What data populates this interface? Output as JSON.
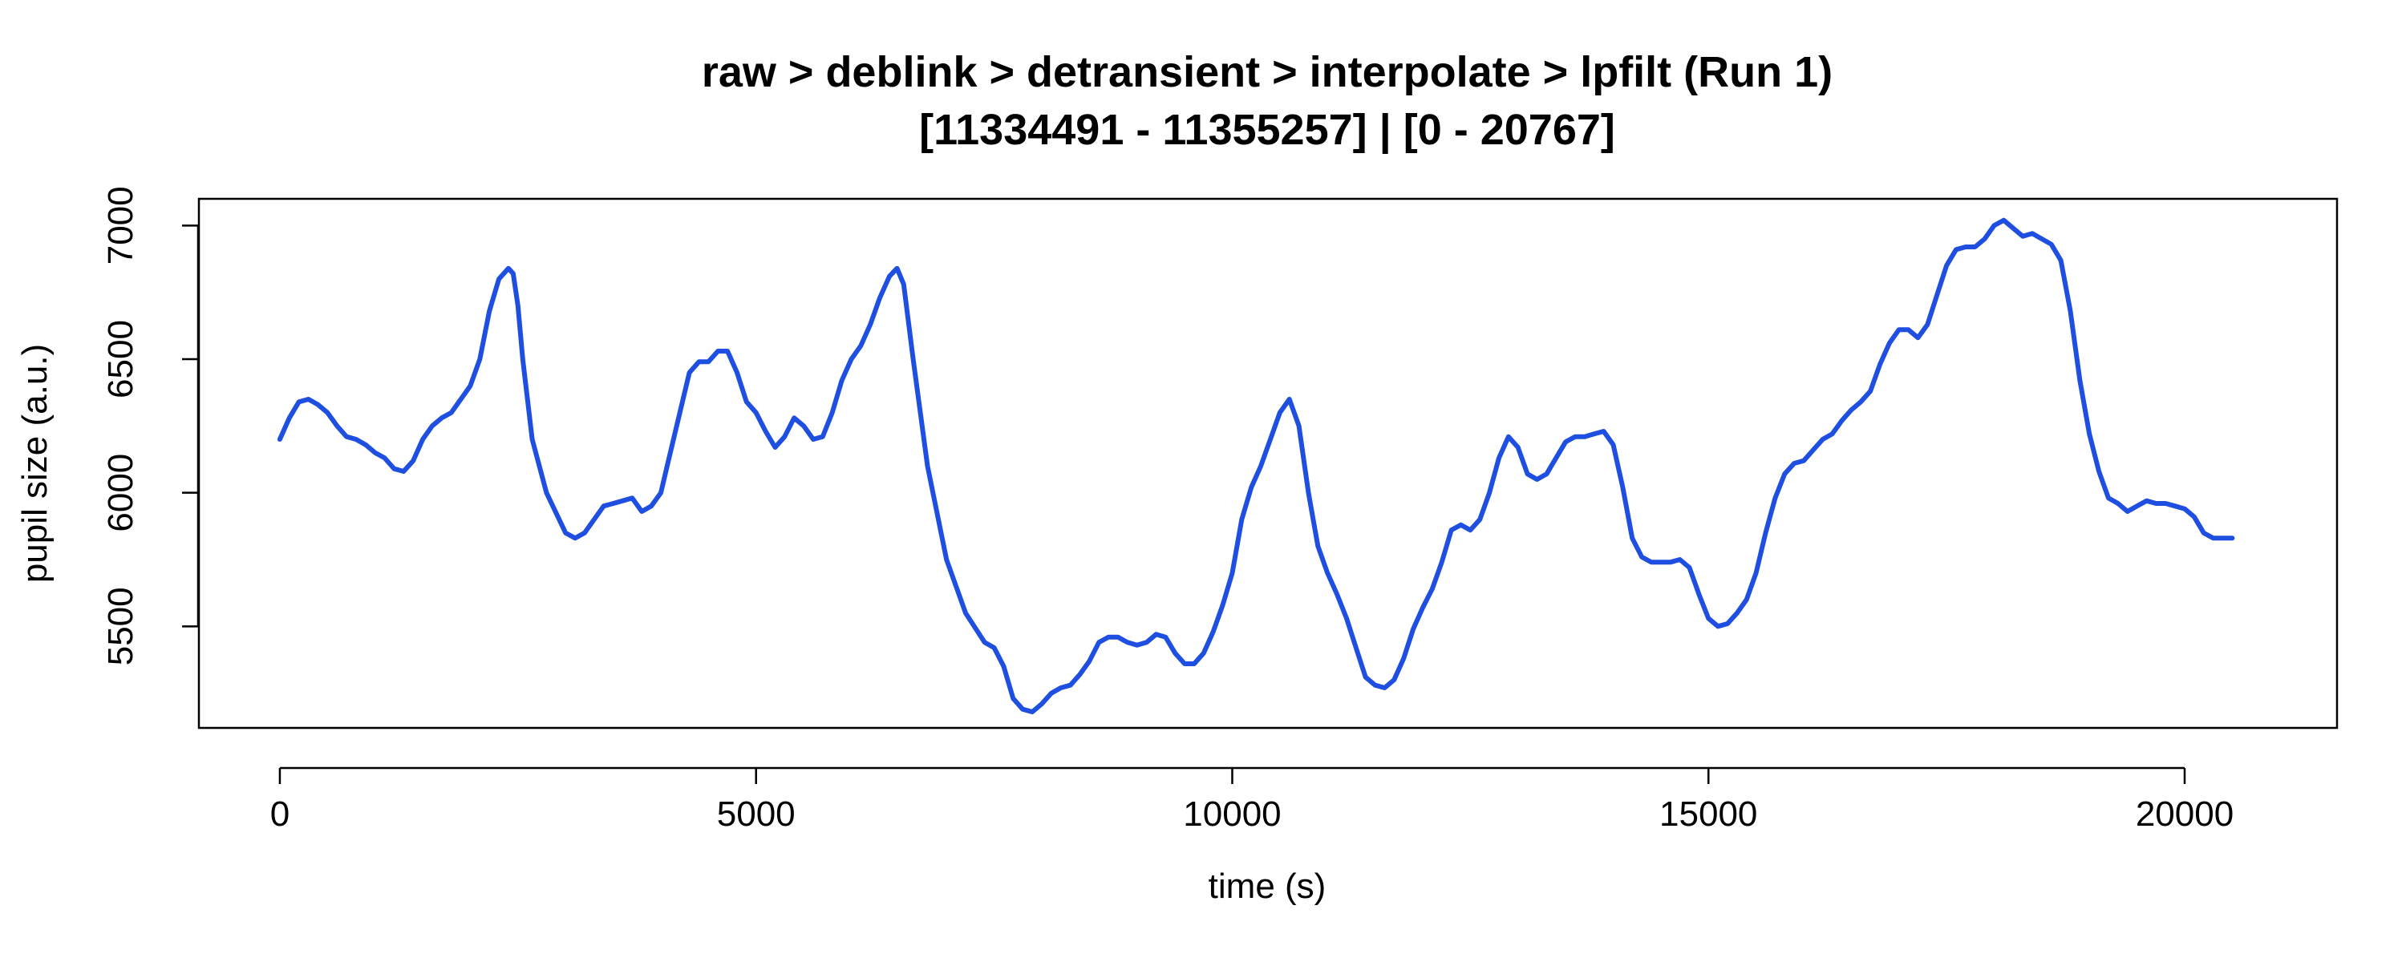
{
  "chart_data": {
    "type": "line",
    "title": "raw > deblink > detransient > interpolate > lpfilt (Run 1)",
    "subtitle": "[11334491 - 11355257] | [0 - 20767]",
    "xlabel": "time (s)",
    "ylabel": "pupil size (a.u.)",
    "xlim": [
      -850,
      21600
    ],
    "ylim": [
      5120,
      7100
    ],
    "x_ticks": [
      0,
      5000,
      10000,
      15000,
      20000
    ],
    "x_tick_labels": [
      "0",
      "5000",
      "10000",
      "15000",
      "20000"
    ],
    "y_ticks": [
      5500,
      6000,
      6500,
      7000
    ],
    "y_tick_labels": [
      "5500",
      "6000",
      "6500",
      "7000"
    ],
    "grid": false,
    "line_color": "#1f4fe0",
    "series": [
      {
        "values": [
          [
            0,
            6200
          ],
          [
            100,
            6280
          ],
          [
            200,
            6340
          ],
          [
            300,
            6350
          ],
          [
            400,
            6330
          ],
          [
            500,
            6300
          ],
          [
            600,
            6250
          ],
          [
            700,
            6210
          ],
          [
            800,
            6200
          ],
          [
            900,
            6180
          ],
          [
            1000,
            6150
          ],
          [
            1100,
            6130
          ],
          [
            1200,
            6090
          ],
          [
            1300,
            6080
          ],
          [
            1400,
            6120
          ],
          [
            1500,
            6200
          ],
          [
            1600,
            6250
          ],
          [
            1700,
            6280
          ],
          [
            1800,
            6300
          ],
          [
            1900,
            6350
          ],
          [
            2000,
            6400
          ],
          [
            2100,
            6500
          ],
          [
            2200,
            6680
          ],
          [
            2300,
            6800
          ],
          [
            2400,
            6840
          ],
          [
            2450,
            6820
          ],
          [
            2500,
            6700
          ],
          [
            2550,
            6500
          ],
          [
            2650,
            6200
          ],
          [
            2800,
            6000
          ],
          [
            3000,
            5850
          ],
          [
            3100,
            5830
          ],
          [
            3200,
            5850
          ],
          [
            3300,
            5900
          ],
          [
            3400,
            5950
          ],
          [
            3600,
            5970
          ],
          [
            3700,
            5980
          ],
          [
            3800,
            5930
          ],
          [
            3900,
            5950
          ],
          [
            4000,
            6000
          ],
          [
            4100,
            6150
          ],
          [
            4200,
            6300
          ],
          [
            4300,
            6450
          ],
          [
            4400,
            6490
          ],
          [
            4500,
            6490
          ],
          [
            4600,
            6530
          ],
          [
            4700,
            6530
          ],
          [
            4800,
            6450
          ],
          [
            4900,
            6340
          ],
          [
            5000,
            6300
          ],
          [
            5100,
            6230
          ],
          [
            5200,
            6170
          ],
          [
            5300,
            6210
          ],
          [
            5400,
            6280
          ],
          [
            5500,
            6250
          ],
          [
            5600,
            6200
          ],
          [
            5700,
            6210
          ],
          [
            5800,
            6300
          ],
          [
            5900,
            6420
          ],
          [
            6000,
            6500
          ],
          [
            6100,
            6550
          ],
          [
            6200,
            6630
          ],
          [
            6300,
            6730
          ],
          [
            6400,
            6810
          ],
          [
            6480,
            6840
          ],
          [
            6550,
            6780
          ],
          [
            6650,
            6500
          ],
          [
            6800,
            6100
          ],
          [
            7000,
            5750
          ],
          [
            7200,
            5550
          ],
          [
            7400,
            5440
          ],
          [
            7500,
            5420
          ],
          [
            7600,
            5350
          ],
          [
            7700,
            5230
          ],
          [
            7800,
            5190
          ],
          [
            7900,
            5180
          ],
          [
            8000,
            5210
          ],
          [
            8100,
            5250
          ],
          [
            8200,
            5270
          ],
          [
            8300,
            5280
          ],
          [
            8400,
            5320
          ],
          [
            8500,
            5370
          ],
          [
            8600,
            5440
          ],
          [
            8700,
            5460
          ],
          [
            8800,
            5460
          ],
          [
            8900,
            5440
          ],
          [
            9000,
            5430
          ],
          [
            9100,
            5440
          ],
          [
            9200,
            5470
          ],
          [
            9300,
            5460
          ],
          [
            9400,
            5400
          ],
          [
            9500,
            5360
          ],
          [
            9600,
            5360
          ],
          [
            9700,
            5400
          ],
          [
            9800,
            5480
          ],
          [
            9900,
            5580
          ],
          [
            10000,
            5700
          ],
          [
            10100,
            5900
          ],
          [
            10200,
            6020
          ],
          [
            10300,
            6100
          ],
          [
            10400,
            6200
          ],
          [
            10500,
            6300
          ],
          [
            10600,
            6350
          ],
          [
            10700,
            6250
          ],
          [
            10800,
            6000
          ],
          [
            10900,
            5800
          ],
          [
            11000,
            5700
          ],
          [
            11100,
            5620
          ],
          [
            11200,
            5530
          ],
          [
            11300,
            5420
          ],
          [
            11400,
            5310
          ],
          [
            11500,
            5280
          ],
          [
            11600,
            5270
          ],
          [
            11700,
            5300
          ],
          [
            11800,
            5380
          ],
          [
            11900,
            5490
          ],
          [
            12000,
            5570
          ],
          [
            12100,
            5640
          ],
          [
            12200,
            5740
          ],
          [
            12300,
            5860
          ],
          [
            12400,
            5880
          ],
          [
            12500,
            5860
          ],
          [
            12600,
            5900
          ],
          [
            12700,
            6000
          ],
          [
            12800,
            6130
          ],
          [
            12900,
            6210
          ],
          [
            13000,
            6170
          ],
          [
            13100,
            6070
          ],
          [
            13200,
            6050
          ],
          [
            13300,
            6070
          ],
          [
            13400,
            6130
          ],
          [
            13500,
            6190
          ],
          [
            13600,
            6210
          ],
          [
            13700,
            6210
          ],
          [
            13800,
            6220
          ],
          [
            13900,
            6230
          ],
          [
            14000,
            6180
          ],
          [
            14100,
            6020
          ],
          [
            14200,
            5830
          ],
          [
            14300,
            5760
          ],
          [
            14400,
            5740
          ],
          [
            14500,
            5740
          ],
          [
            14600,
            5740
          ],
          [
            14700,
            5750
          ],
          [
            14800,
            5720
          ],
          [
            14900,
            5620
          ],
          [
            15000,
            5530
          ],
          [
            15100,
            5500
          ],
          [
            15200,
            5510
          ],
          [
            15300,
            5550
          ],
          [
            15400,
            5600
          ],
          [
            15500,
            5700
          ],
          [
            15600,
            5850
          ],
          [
            15700,
            5980
          ],
          [
            15800,
            6070
          ],
          [
            15900,
            6110
          ],
          [
            16000,
            6120
          ],
          [
            16100,
            6160
          ],
          [
            16200,
            6200
          ],
          [
            16300,
            6220
          ],
          [
            16400,
            6270
          ],
          [
            16500,
            6310
          ],
          [
            16600,
            6340
          ],
          [
            16700,
            6380
          ],
          [
            16800,
            6480
          ],
          [
            16900,
            6560
          ],
          [
            17000,
            6610
          ],
          [
            17100,
            6610
          ],
          [
            17200,
            6580
          ],
          [
            17300,
            6630
          ],
          [
            17400,
            6740
          ],
          [
            17500,
            6850
          ],
          [
            17600,
            6910
          ],
          [
            17700,
            6920
          ],
          [
            17800,
            6920
          ],
          [
            17900,
            6950
          ],
          [
            18000,
            7000
          ],
          [
            18100,
            7020
          ],
          [
            18200,
            6990
          ],
          [
            18300,
            6960
          ],
          [
            18400,
            6970
          ],
          [
            18500,
            6950
          ],
          [
            18600,
            6930
          ],
          [
            18700,
            6870
          ],
          [
            18800,
            6680
          ],
          [
            18900,
            6420
          ],
          [
            19000,
            6220
          ],
          [
            19100,
            6080
          ],
          [
            19200,
            5980
          ],
          [
            19300,
            5960
          ],
          [
            19400,
            5930
          ],
          [
            19500,
            5950
          ],
          [
            19600,
            5970
          ],
          [
            19700,
            5960
          ],
          [
            19800,
            5960
          ],
          [
            19900,
            5950
          ],
          [
            20000,
            5940
          ],
          [
            20100,
            5910
          ],
          [
            20200,
            5850
          ],
          [
            20300,
            5830
          ],
          [
            20400,
            5830
          ],
          [
            20500,
            5830
          ]
        ]
      }
    ]
  }
}
